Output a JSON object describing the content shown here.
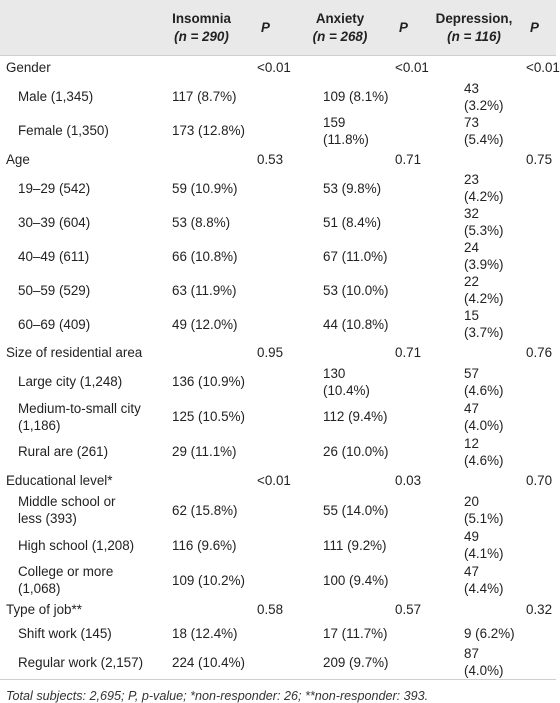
{
  "header": {
    "col_insomnia": "Insomnia",
    "col_insomnia_n": "(n = 290)",
    "col_p": "P",
    "col_anxiety": "Anxiety",
    "col_anxiety_n": "(n = 268)",
    "col_depression": "Depression,",
    "col_depression_n": "(n = 116)"
  },
  "rows": [
    {
      "type": "group",
      "label": "Gender",
      "p1": "<0.01",
      "p2": "<0.01",
      "p3": "<0.01"
    },
    {
      "type": "item",
      "label": "Male (1,345)",
      "ins": "117 (8.7%)",
      "anx": "109 (8.1%)",
      "dep": "43 (3.2%)"
    },
    {
      "type": "item",
      "label": "Female (1,350)",
      "ins": "173 (12.8%)",
      "anx": "159 (11.8%)",
      "dep": "73 (5.4%)"
    },
    {
      "type": "group",
      "label": "Age",
      "p1": "0.53",
      "p2": "0.71",
      "p3": "0.75"
    },
    {
      "type": "item",
      "label": "19–29 (542)",
      "ins": "59 (10.9%)",
      "anx": "53 (9.8%)",
      "dep": "23 (4.2%)"
    },
    {
      "type": "item",
      "label": "30–39 (604)",
      "ins": "53 (8.8%)",
      "anx": "51 (8.4%)",
      "dep": "32 (5.3%)"
    },
    {
      "type": "item",
      "label": "40–49 (611)",
      "ins": "66 (10.8%)",
      "anx": "67 (11.0%)",
      "dep": "24 (3.9%)"
    },
    {
      "type": "item",
      "label": "50–59 (529)",
      "ins": "63 (11.9%)",
      "anx": "53 (10.0%)",
      "dep": "22 (4.2%)"
    },
    {
      "type": "item",
      "label": "60–69 (409)",
      "ins": "49 (12.0%)",
      "anx": "44 (10.8%)",
      "dep": "15 (3.7%)"
    },
    {
      "type": "group",
      "label": "Size of residential area",
      "p1": "0.95",
      "p2": "0.71",
      "p3": "0.76"
    },
    {
      "type": "item",
      "label": "Large city (1,248)",
      "ins": "136 (10.9%)",
      "anx": "130 (10.4%)",
      "dep": "57 (4.6%)"
    },
    {
      "type": "item2",
      "label1": "Medium-to-small city",
      "label2": "(1,186)",
      "ins": "125 (10.5%)",
      "anx": "112 (9.4%)",
      "dep": "47 (4.0%)"
    },
    {
      "type": "item",
      "label": "Rural are (261)",
      "ins": "29 (11.1%)",
      "anx": "26 (10.0%)",
      "dep": "12 (4.6%)"
    },
    {
      "type": "group",
      "label": "Educational level*",
      "p1": "<0.01",
      "p2": "0.03",
      "p3": "0.70"
    },
    {
      "type": "item2",
      "label1": "Middle school or",
      "label2": "less (393)",
      "ins": "62 (15.8%)",
      "anx": "55 (14.0%)",
      "dep": "20 (5.1%)"
    },
    {
      "type": "item",
      "label": "High school (1,208)",
      "ins": "116 (9.6%)",
      "anx": "111 (9.2%)",
      "dep": "49 (4.1%)"
    },
    {
      "type": "item2",
      "label1": "College or more",
      "label2": "(1,068)",
      "ins": "109 (10.2%)",
      "anx": "100 (9.4%)",
      "dep": "47 (4.4%)"
    },
    {
      "type": "group",
      "label": "Type of job**",
      "p1": "0.58",
      "p2": "0.57",
      "p3": "0.32"
    },
    {
      "type": "item",
      "label": "Shift work (145)",
      "ins": "18 (12.4%)",
      "anx": "17 (11.7%)",
      "dep": "9 (6.2%)"
    },
    {
      "type": "item",
      "label": "Regular work (2,157)",
      "ins": "224 (10.4%)",
      "anx": "209 (9.7%)",
      "dep": "87 (4.0%)"
    }
  ],
  "footnote": "Total subjects: 2,695; P, p-value; *non-responder: 26; **non-responder: 393."
}
